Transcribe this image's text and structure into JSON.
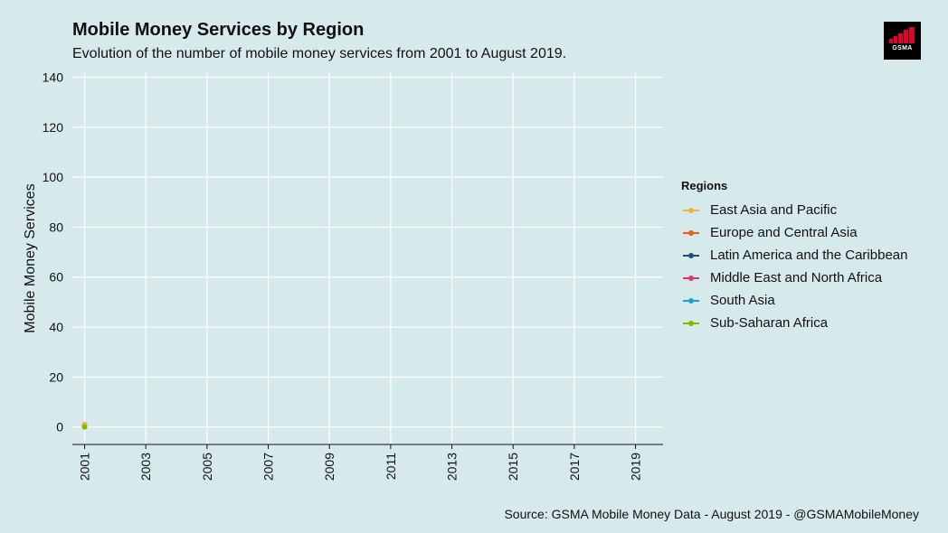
{
  "header": {
    "title": "Mobile Money Services by Region",
    "subtitle": "Evolution of the number of mobile money services from 2001 to August 2019.",
    "logo_text": "GSMA"
  },
  "footer": {
    "source": "Source: GSMA Mobile Money Data - August 2019 - @GSMAMobileMoney"
  },
  "colors": {
    "background": "#d6eaeb",
    "gridline": "#ffffff",
    "logo_red": "#e4002b"
  },
  "chart_data": {
    "type": "line",
    "title": "Mobile Money Services by Region",
    "xlabel": "",
    "ylabel": "Mobile Money Services",
    "x_ticks": [
      "2001",
      "2003",
      "2005",
      "2007",
      "2009",
      "2011",
      "2013",
      "2015",
      "2017",
      "2019"
    ],
    "y_ticks": [
      "0",
      "20",
      "40",
      "60",
      "80",
      "100",
      "120",
      "140"
    ],
    "xlim": [
      2000.6,
      2019.9
    ],
    "ylim": [
      -7,
      142
    ],
    "grid": true,
    "legend_title": "Regions",
    "legend_position": "right",
    "series": [
      {
        "name": "East Asia and Pacific",
        "color": "#f0b43c",
        "x": [
          2001
        ],
        "y": [
          1
        ]
      },
      {
        "name": "Europe and Central Asia",
        "color": "#e8601c",
        "x": [],
        "y": []
      },
      {
        "name": "Latin America and the Caribbean",
        "color": "#1f4e79",
        "x": [],
        "y": []
      },
      {
        "name": "Middle East and North Africa",
        "color": "#e0356f",
        "x": [],
        "y": []
      },
      {
        "name": "South Asia",
        "color": "#1da1d0",
        "x": [],
        "y": []
      },
      {
        "name": "Sub-Saharan Africa",
        "color": "#8db600",
        "x": [
          2001
        ],
        "y": [
          0
        ]
      }
    ]
  }
}
